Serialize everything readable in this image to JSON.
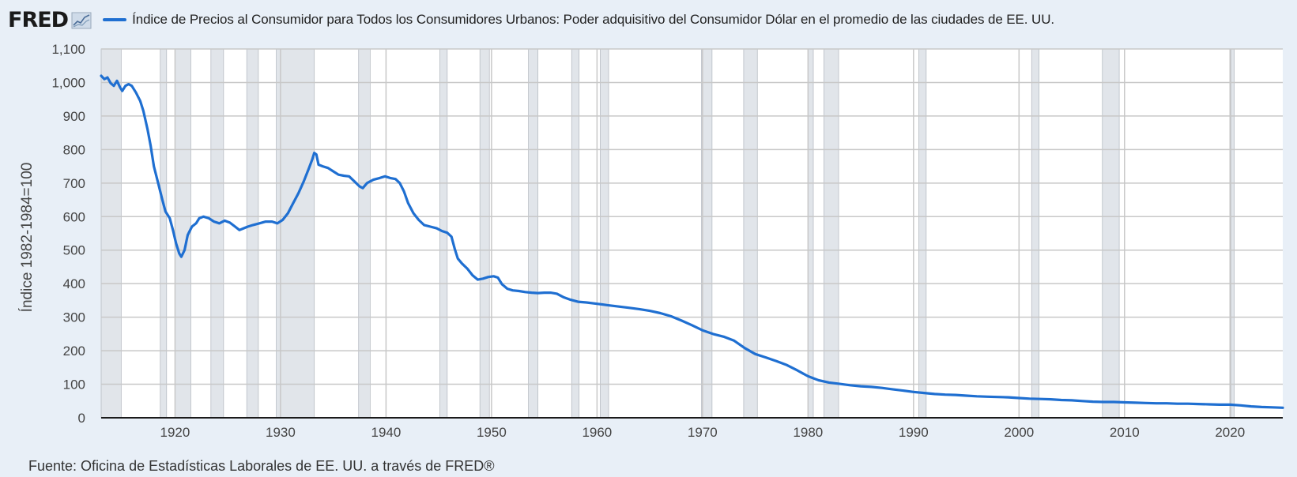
{
  "header": {
    "logo_text": "FRED",
    "logo_icon": "line-chart-icon",
    "title": "Índice de Precios al Consumidor para Todos los Consumidores Urbanos: Poder adquisitivo del Consumidor Dólar en el promedio de las ciudades de EE. UU."
  },
  "footer": {
    "source": "Fuente: Oficina de Estadísticas Laborales de EE. UU. a través de FRED®"
  },
  "colors": {
    "series": "#1f6fd1",
    "background": "#e8eff7",
    "plot": "#ffffff",
    "recession": "#e1e5ea",
    "grid": "#c8c8c8"
  },
  "chart_data": {
    "type": "line",
    "title": "Índice de Precios al Consumidor para Todos los Consumidores Urbanos: Poder adquisitivo del Consumidor Dólar en el promedio de las ciudades de EE. UU.",
    "xlabel": "",
    "ylabel": "Índice 1982-1984=100",
    "xlim": [
      1913,
      2025
    ],
    "ylim": [
      0,
      1100
    ],
    "x_ticks": [
      1920,
      1930,
      1940,
      1950,
      1960,
      1970,
      1980,
      1990,
      2000,
      2010,
      2020
    ],
    "y_ticks": [
      0,
      100,
      200,
      300,
      400,
      500,
      600,
      700,
      800,
      900,
      1000,
      1100
    ],
    "y_tick_labels": [
      "0",
      "100",
      "200",
      "300",
      "400",
      "500",
      "600",
      "700",
      "800",
      "900",
      "1,000",
      "1,100"
    ],
    "grid": true,
    "legend": "top-left",
    "recessions": [
      [
        1913.0,
        1914.9
      ],
      [
        1918.6,
        1919.2
      ],
      [
        1920.0,
        1921.5
      ],
      [
        1923.4,
        1924.6
      ],
      [
        1926.8,
        1927.9
      ],
      [
        1929.6,
        1933.2
      ],
      [
        1937.4,
        1938.5
      ],
      [
        1945.1,
        1945.8
      ],
      [
        1948.9,
        1949.8
      ],
      [
        1953.5,
        1954.4
      ],
      [
        1957.6,
        1958.3
      ],
      [
        1960.3,
        1961.1
      ],
      [
        1969.9,
        1970.9
      ],
      [
        1973.9,
        1975.2
      ],
      [
        1980.0,
        1980.5
      ],
      [
        1981.5,
        1982.9
      ],
      [
        1990.5,
        1991.2
      ],
      [
        2001.2,
        2001.9
      ],
      [
        2007.9,
        2009.5
      ],
      [
        2020.1,
        2020.4
      ]
    ],
    "series": [
      {
        "name": "Índice de Precios al Consumidor para Todos los Consumidores Urbanos: Poder adquisitivo del Consumidor Dólar en el promedio de las ciudades de EE. UU.",
        "points": [
          [
            1913.0,
            1020
          ],
          [
            1913.3,
            1010
          ],
          [
            1913.6,
            1015
          ],
          [
            1913.9,
            998
          ],
          [
            1914.2,
            990
          ],
          [
            1914.5,
            1005
          ],
          [
            1914.8,
            985
          ],
          [
            1915.0,
            975
          ],
          [
            1915.3,
            990
          ],
          [
            1915.6,
            995
          ],
          [
            1915.9,
            990
          ],
          [
            1916.3,
            970
          ],
          [
            1916.7,
            945
          ],
          [
            1917.0,
            915
          ],
          [
            1917.4,
            860
          ],
          [
            1917.7,
            810
          ],
          [
            1918.0,
            750
          ],
          [
            1918.4,
            700
          ],
          [
            1918.8,
            650
          ],
          [
            1919.1,
            615
          ],
          [
            1919.5,
            595
          ],
          [
            1919.8,
            560
          ],
          [
            1920.1,
            520
          ],
          [
            1920.4,
            490
          ],
          [
            1920.6,
            480
          ],
          [
            1920.9,
            500
          ],
          [
            1921.2,
            545
          ],
          [
            1921.6,
            570
          ],
          [
            1922.0,
            580
          ],
          [
            1922.3,
            595
          ],
          [
            1922.7,
            600
          ],
          [
            1923.2,
            595
          ],
          [
            1923.7,
            585
          ],
          [
            1924.2,
            580
          ],
          [
            1924.7,
            588
          ],
          [
            1925.2,
            582
          ],
          [
            1925.7,
            570
          ],
          [
            1926.1,
            560
          ],
          [
            1926.5,
            565
          ],
          [
            1926.9,
            570
          ],
          [
            1927.4,
            575
          ],
          [
            1928.0,
            580
          ],
          [
            1928.6,
            585
          ],
          [
            1929.2,
            585
          ],
          [
            1929.7,
            580
          ],
          [
            1930.2,
            590
          ],
          [
            1930.7,
            610
          ],
          [
            1931.2,
            640
          ],
          [
            1931.7,
            670
          ],
          [
            1932.2,
            705
          ],
          [
            1932.7,
            745
          ],
          [
            1933.0,
            770
          ],
          [
            1933.2,
            790
          ],
          [
            1933.4,
            785
          ],
          [
            1933.6,
            755
          ],
          [
            1934.0,
            750
          ],
          [
            1934.5,
            745
          ],
          [
            1935.0,
            735
          ],
          [
            1935.5,
            725
          ],
          [
            1936.0,
            722
          ],
          [
            1936.5,
            720
          ],
          [
            1937.0,
            705
          ],
          [
            1937.5,
            690
          ],
          [
            1937.8,
            685
          ],
          [
            1938.2,
            700
          ],
          [
            1938.8,
            710
          ],
          [
            1939.4,
            715
          ],
          [
            1939.9,
            720
          ],
          [
            1940.4,
            715
          ],
          [
            1940.9,
            712
          ],
          [
            1941.3,
            700
          ],
          [
            1941.7,
            675
          ],
          [
            1942.1,
            640
          ],
          [
            1942.6,
            610
          ],
          [
            1943.1,
            590
          ],
          [
            1943.6,
            575
          ],
          [
            1944.2,
            570
          ],
          [
            1944.8,
            565
          ],
          [
            1945.3,
            557
          ],
          [
            1945.8,
            552
          ],
          [
            1946.2,
            540
          ],
          [
            1946.5,
            505
          ],
          [
            1946.8,
            475
          ],
          [
            1947.2,
            460
          ],
          [
            1947.7,
            445
          ],
          [
            1948.2,
            425
          ],
          [
            1948.7,
            412
          ],
          [
            1949.2,
            415
          ],
          [
            1949.7,
            420
          ],
          [
            1950.2,
            422
          ],
          [
            1950.6,
            418
          ],
          [
            1951.0,
            398
          ],
          [
            1951.5,
            385
          ],
          [
            1952.0,
            380
          ],
          [
            1952.6,
            378
          ],
          [
            1953.2,
            375
          ],
          [
            1953.8,
            373
          ],
          [
            1954.4,
            372
          ],
          [
            1955.0,
            373
          ],
          [
            1955.6,
            373
          ],
          [
            1956.2,
            370
          ],
          [
            1956.8,
            360
          ],
          [
            1957.5,
            352
          ],
          [
            1958.2,
            346
          ],
          [
            1959.0,
            344
          ],
          [
            1960.0,
            340
          ],
          [
            1961.0,
            336
          ],
          [
            1962.0,
            332
          ],
          [
            1963.0,
            328
          ],
          [
            1964.0,
            324
          ],
          [
            1965.0,
            319
          ],
          [
            1966.0,
            312
          ],
          [
            1967.0,
            303
          ],
          [
            1968.0,
            290
          ],
          [
            1969.0,
            276
          ],
          [
            1970.0,
            261
          ],
          [
            1971.0,
            250
          ],
          [
            1972.0,
            242
          ],
          [
            1973.0,
            230
          ],
          [
            1974.0,
            208
          ],
          [
            1975.0,
            190
          ],
          [
            1976.0,
            180
          ],
          [
            1977.0,
            169
          ],
          [
            1978.0,
            157
          ],
          [
            1979.0,
            141
          ],
          [
            1980.0,
            124
          ],
          [
            1981.0,
            112
          ],
          [
            1982.0,
            105
          ],
          [
            1983.0,
            101
          ],
          [
            1984.0,
            97
          ],
          [
            1985.0,
            94
          ],
          [
            1986.0,
            92
          ],
          [
            1987.0,
            89
          ],
          [
            1988.0,
            85
          ],
          [
            1989.0,
            81
          ],
          [
            1990.0,
            77
          ],
          [
            1991.0,
            74
          ],
          [
            1992.0,
            71
          ],
          [
            1993.0,
            69
          ],
          [
            1994.0,
            68
          ],
          [
            1995.0,
            66
          ],
          [
            1996.0,
            64
          ],
          [
            1997.0,
            63
          ],
          [
            1998.0,
            62
          ],
          [
            1999.0,
            61
          ],
          [
            2000.0,
            59
          ],
          [
            2001.0,
            57
          ],
          [
            2002.0,
            56
          ],
          [
            2003.0,
            55
          ],
          [
            2004.0,
            53
          ],
          [
            2005.0,
            52
          ],
          [
            2006.0,
            50
          ],
          [
            2007.0,
            48
          ],
          [
            2008.0,
            47
          ],
          [
            2009.0,
            47
          ],
          [
            2010.0,
            46
          ],
          [
            2011.0,
            45
          ],
          [
            2012.0,
            44
          ],
          [
            2013.0,
            43
          ],
          [
            2014.0,
            43
          ],
          [
            2015.0,
            42
          ],
          [
            2016.0,
            42
          ],
          [
            2017.0,
            41
          ],
          [
            2018.0,
            40
          ],
          [
            2019.0,
            39
          ],
          [
            2020.0,
            39
          ],
          [
            2021.0,
            37
          ],
          [
            2022.0,
            34
          ],
          [
            2023.0,
            32
          ],
          [
            2024.0,
            31
          ],
          [
            2025.0,
            30
          ]
        ]
      }
    ]
  }
}
